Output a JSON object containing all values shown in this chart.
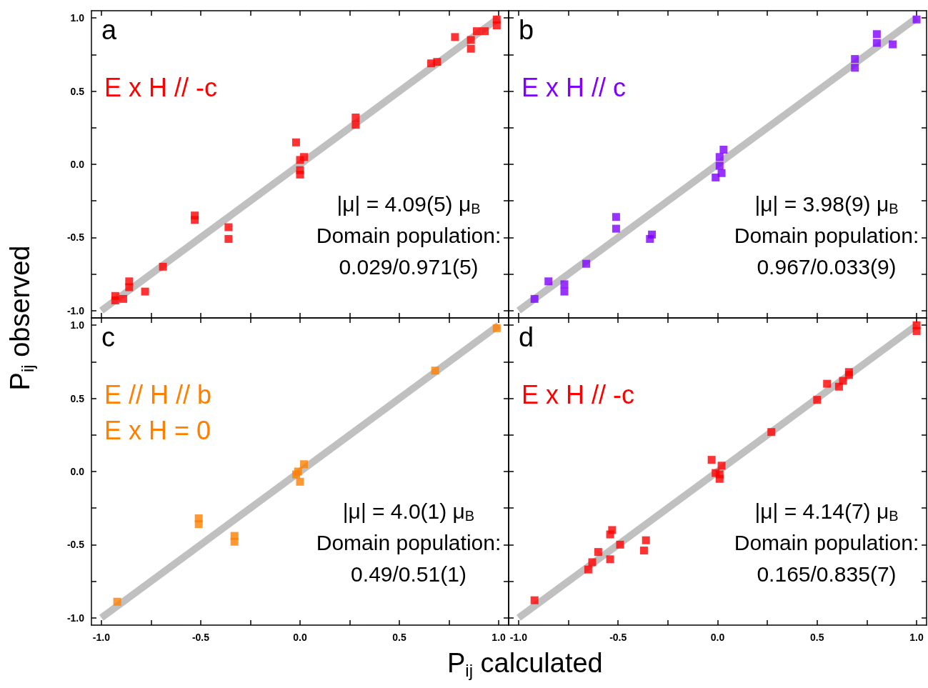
{
  "chart_data": [
    {
      "type": "scatter",
      "marker": "square",
      "tick_labels": "y",
      "xlim": [
        -1.05,
        1.05
      ],
      "ylim": [
        -1.05,
        1.05
      ],
      "xticks": [
        {
          "value": -1,
          "label": null
        },
        {
          "value": -0.75,
          "label": null
        },
        {
          "value": -0.5,
          "label": null
        },
        {
          "value": -0.25,
          "label": null
        },
        {
          "value": 0,
          "label": null
        },
        {
          "value": 0.25,
          "label": null
        },
        {
          "value": 0.5,
          "label": null
        },
        {
          "value": 0.75,
          "label": null
        },
        {
          "value": 1,
          "label": null
        }
      ],
      "yticks": [
        {
          "value": -1,
          "label": "-1.0"
        },
        {
          "value": -0.75,
          "label": null
        },
        {
          "value": -0.5,
          "label": "-0.5"
        },
        {
          "value": -0.25,
          "label": null
        },
        {
          "value": 0,
          "label": "0.0"
        },
        {
          "value": 0.25,
          "label": null
        },
        {
          "value": 0.5,
          "label": "0.5"
        },
        {
          "value": 0.75,
          "label": null
        },
        {
          "value": 1,
          "label": "1.0"
        }
      ],
      "annotations": [
        "a",
        "|μ| = 4.09(5) μ$_{B}$",
        "Domain population:",
        "0.029/0.971(5)"
      ],
      "series": [
        {
          "type": "line",
          "marker": "none",
          "color": "#c0c0c0",
          "x": [
            -1,
            1
          ],
          "values": [
            -1,
            1
          ]
        },
        {
          "name": "E x H // -c",
          "color": "#ff0000",
          "x": [
            -0.93,
            -0.93,
            -0.89,
            -0.86,
            -0.86,
            -0.78,
            -0.69,
            -0.53,
            -0.53,
            -0.36,
            -0.36,
            -0.02,
            0.0,
            0.0,
            0.0,
            0.02,
            0.28,
            0.28,
            0.66,
            0.69,
            0.78,
            0.86,
            0.86,
            0.89,
            0.93,
            0.99,
            0.99
          ],
          "values": [
            -0.93,
            -0.9,
            -0.92,
            -0.84,
            -0.8,
            -0.87,
            -0.7,
            -0.38,
            -0.35,
            -0.43,
            -0.51,
            0.15,
            -0.04,
            -0.07,
            0.03,
            0.05,
            0.32,
            0.27,
            0.69,
            0.7,
            0.87,
            0.85,
            0.79,
            0.91,
            0.91,
            0.99,
            0.95
          ]
        }
      ]
    },
    {
      "type": "scatter",
      "marker": "square",
      "tick_labels": false,
      "xlim": [
        -1.05,
        1.05
      ],
      "ylim": [
        -1.05,
        1.05
      ],
      "xticks": [
        {
          "value": -1,
          "label": null
        },
        {
          "value": -0.75,
          "label": null
        },
        {
          "value": -0.5,
          "label": null
        },
        {
          "value": -0.25,
          "label": null
        },
        {
          "value": 0,
          "label": null
        },
        {
          "value": 0.25,
          "label": null
        },
        {
          "value": 0.5,
          "label": null
        },
        {
          "value": 0.75,
          "label": null
        },
        {
          "value": 1,
          "label": null
        }
      ],
      "yticks": [
        {
          "value": -1,
          "label": null
        },
        {
          "value": -0.75,
          "label": null
        },
        {
          "value": -0.5,
          "label": null
        },
        {
          "value": -0.25,
          "label": null
        },
        {
          "value": 0,
          "label": null
        },
        {
          "value": 0.25,
          "label": null
        },
        {
          "value": 0.5,
          "label": null
        },
        {
          "value": 0.75,
          "label": null
        },
        {
          "value": 1,
          "label": null
        }
      ],
      "annotations": [
        "b",
        "|μ| = 3.98(9) μ$_{B}$",
        "Domain population:",
        "0.967/0.033(9)"
      ],
      "series": [
        {
          "type": "line",
          "marker": "none",
          "color": "#c0c0c0",
          "x": [
            -1,
            1
          ],
          "values": [
            -1,
            1
          ]
        },
        {
          "name": "E x H // c",
          "color": "#7f00ff",
          "x": [
            -0.92,
            -0.85,
            -0.77,
            -0.77,
            -0.66,
            -0.51,
            -0.51,
            -0.33,
            -0.34,
            -0.01,
            0.03,
            0.01,
            0.01,
            0.02,
            0.69,
            0.69,
            0.8,
            0.8,
            0.88,
            1.0
          ],
          "values": [
            -0.92,
            -0.8,
            -0.82,
            -0.87,
            -0.68,
            -0.36,
            -0.44,
            -0.48,
            -0.51,
            -0.09,
            0.1,
            0.05,
            -0.01,
            -0.06,
            0.72,
            0.66,
            0.89,
            0.83,
            0.82,
            0.99
          ]
        }
      ]
    },
    {
      "type": "scatter",
      "marker": "square",
      "xlim": [
        -1.05,
        1.05
      ],
      "ylim": [
        -1.05,
        1.05
      ],
      "xlabel": "P$_{ij}$ calculated",
      "ylabel": "P$_{ij}$ observed",
      "xticks": [
        {
          "value": -1,
          "label": "-1.0"
        },
        {
          "value": -0.75,
          "label": null
        },
        {
          "value": -0.5,
          "label": "-0.5"
        },
        {
          "value": -0.25,
          "label": null
        },
        {
          "value": 0,
          "label": "0.0"
        },
        {
          "value": 0.25,
          "label": null
        },
        {
          "value": 0.5,
          "label": "0.5"
        },
        {
          "value": 0.75,
          "label": null
        },
        {
          "value": 1,
          "label": "1.0"
        }
      ],
      "yticks": [
        {
          "value": -1,
          "label": "-1.0"
        },
        {
          "value": -0.75,
          "label": null
        },
        {
          "value": -0.5,
          "label": "-0.5"
        },
        {
          "value": -0.25,
          "label": null
        },
        {
          "value": 0,
          "label": "0.0"
        },
        {
          "value": 0.25,
          "label": null
        },
        {
          "value": 0.5,
          "label": "0.5"
        },
        {
          "value": 0.75,
          "label": null
        },
        {
          "value": 1,
          "label": "1.0"
        }
      ],
      "annotations": [
        "c",
        "|μ| = 4.0(1) μ$_{B}$",
        "Domain population:",
        "0.49/0.51(1)"
      ],
      "series": [
        {
          "type": "line",
          "marker": "none",
          "color": "#c0c0c0",
          "x": [
            -1,
            1
          ],
          "values": [
            -1,
            1
          ]
        },
        {
          "name": "E // H // b\nE x H = 0",
          "color": "#ff7f00",
          "x": [
            -0.92,
            -0.51,
            -0.51,
            -0.33,
            -0.33,
            -0.02,
            0.0,
            0.02,
            -0.01,
            0.68,
            0.99
          ],
          "values": [
            -0.89,
            -0.32,
            -0.36,
            -0.44,
            -0.48,
            -0.02,
            -0.07,
            0.05,
            0.0,
            0.69,
            0.98
          ]
        }
      ]
    },
    {
      "type": "scatter",
      "marker": "square",
      "tick_labels": "x",
      "xlim": [
        -1.05,
        1.05
      ],
      "ylim": [
        -1.05,
        1.05
      ],
      "xticks": [
        {
          "value": -1,
          "label": "-1.0"
        },
        {
          "value": -0.75,
          "label": null
        },
        {
          "value": -0.5,
          "label": "-0.5"
        },
        {
          "value": -0.25,
          "label": null
        },
        {
          "value": 0,
          "label": "0.0"
        },
        {
          "value": 0.25,
          "label": null
        },
        {
          "value": 0.5,
          "label": "0.5"
        },
        {
          "value": 0.75,
          "label": null
        },
        {
          "value": 1,
          "label": "1.0"
        }
      ],
      "yticks": [
        {
          "value": -1,
          "label": null
        },
        {
          "value": -0.75,
          "label": null
        },
        {
          "value": -0.5,
          "label": null
        },
        {
          "value": -0.25,
          "label": null
        },
        {
          "value": 0,
          "label": null
        },
        {
          "value": 0.25,
          "label": null
        },
        {
          "value": 0.5,
          "label": null
        },
        {
          "value": 0.75,
          "label": null
        },
        {
          "value": 1,
          "label": null
        }
      ],
      "annotations": [
        "d",
        "|μ| = 4.14(7) μ$_{B}$",
        "Domain population:",
        "0.165/0.835(7)"
      ],
      "series": [
        {
          "type": "line",
          "marker": "none",
          "color": "#c0c0c0",
          "x": [
            -1,
            1
          ],
          "values": [
            -1,
            1
          ]
        },
        {
          "name": "E x H // -c",
          "color": "#ff0000",
          "x": [
            -0.92,
            -0.65,
            -0.63,
            -0.6,
            -0.54,
            -0.54,
            -0.53,
            -0.49,
            -0.37,
            -0.36,
            -0.03,
            -0.01,
            0.02,
            0.01,
            0.01,
            0.27,
            0.5,
            0.55,
            0.61,
            0.63,
            0.66,
            0.66,
            1.0,
            1.0
          ],
          "values": [
            -0.88,
            -0.67,
            -0.62,
            -0.55,
            -0.6,
            -0.43,
            -0.4,
            -0.5,
            -0.54,
            -0.47,
            0.08,
            -0.01,
            0.04,
            -0.02,
            -0.05,
            0.27,
            0.49,
            0.6,
            0.58,
            0.62,
            0.66,
            0.68,
            1.0,
            0.96
          ]
        }
      ]
    }
  ]
}
